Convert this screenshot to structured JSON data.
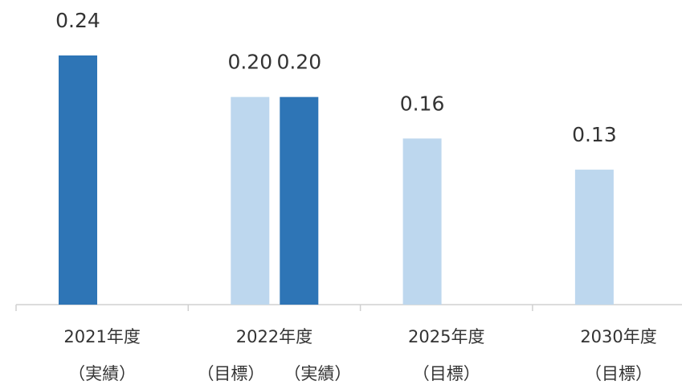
{
  "chart_data": {
    "type": "bar",
    "categories": [
      "2021年度",
      "2022年度",
      "2025年度",
      "2030年度"
    ],
    "series": [
      {
        "name": "（目標）",
        "color": "#bdd7ee",
        "values": [
          null,
          0.2,
          0.16,
          0.13
        ],
        "value_labels": [
          null,
          "0.20",
          "0.16",
          "0.13"
        ]
      },
      {
        "name": "（実績）",
        "color": "#2e75b6",
        "values": [
          0.24,
          0.2,
          null,
          null
        ],
        "value_labels": [
          "0.24",
          "0.20",
          null,
          null
        ]
      }
    ],
    "ylim": [
      0,
      0.24
    ]
  }
}
